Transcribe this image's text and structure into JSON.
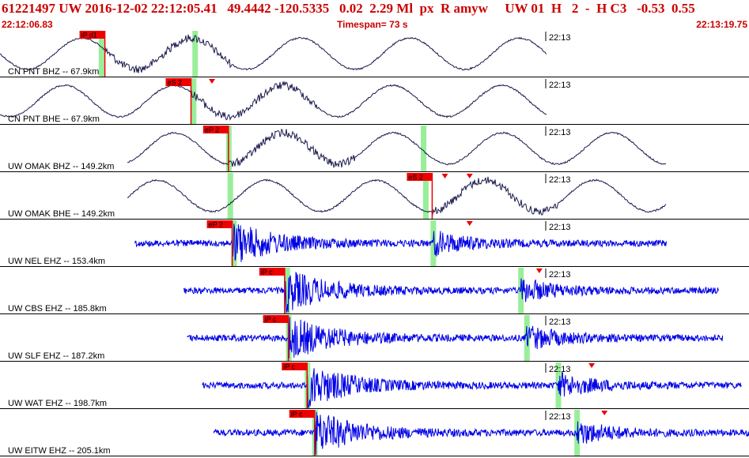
{
  "header": {
    "line": "61221497 UW 2016-12-02 22:12:05.41   49.4442 -120.5335   0.02  2.29 Ml  px  R amyw     UW 01  H   2  -  H C3   -0.53  0.55",
    "start_time": "22:12:06.83",
    "timespan": "Timespan=  73 s",
    "end_time": "22:13:19.75"
  },
  "colors": {
    "header_text": "#cc0000",
    "broadband_trace": "#1a1a4d",
    "short_period_trace": "#0000e6",
    "pick_box": "#ee0000",
    "pick_window": "#99ee99",
    "axis": "#000000"
  },
  "time_marker": "22:13",
  "traces": [
    {
      "label": "CN PNT BHZ -- 67.9km",
      "kind": "bb",
      "start": 0.0,
      "end": 0.73,
      "picks": [
        {
          "label": "iP d1",
          "t": 0.14
        }
      ],
      "windows": [
        0.135,
        0.26
      ],
      "arrivals": []
    },
    {
      "label": "CN PNT BHE -- 67.9km",
      "kind": "bb",
      "start": 0.0,
      "end": 0.73,
      "picks": [
        {
          "label": "eS 2",
          "t": 0.255
        }
      ],
      "windows": [
        0.258
      ],
      "arrivals": [
        0.283
      ]
    },
    {
      "label": "UW OMAK BHZ -- 149.2km",
      "kind": "bb",
      "start": 0.17,
      "end": 0.89,
      "picks": [
        {
          "label": "eP 2",
          "t": 0.305
        }
      ],
      "windows": [
        0.305,
        0.565
      ],
      "arrivals": []
    },
    {
      "label": "UW OMAK BHE -- 149.2km",
      "kind": "bb",
      "start": 0.17,
      "end": 0.89,
      "picks": [
        {
          "label": "eS 2",
          "t": 0.577
        }
      ],
      "windows": [
        0.307,
        0.568
      ],
      "arrivals": [
        0.594,
        0.627
      ]
    },
    {
      "label": "UW NEL EHZ -- 153.4km",
      "kind": "sp",
      "start": 0.18,
      "end": 0.89,
      "picks": [
        {
          "label": "eP 2",
          "t": 0.31
        }
      ],
      "windows": [
        0.312,
        0.578
      ],
      "arrivals": [
        0.627
      ]
    },
    {
      "label": "UW CBS EHZ -- 185.8km",
      "kind": "sp",
      "start": 0.245,
      "end": 0.96,
      "picks": [
        {
          "label": "iP c",
          "t": 0.38
        }
      ],
      "windows": [
        0.383,
        0.695
      ],
      "arrivals": [
        0.72
      ]
    },
    {
      "label": "UW SLF EHZ -- 187.2km",
      "kind": "sp",
      "start": 0.25,
      "end": 0.965,
      "picks": [
        {
          "label": "iP c",
          "t": 0.385
        }
      ],
      "windows": [
        0.385,
        0.703
      ],
      "arrivals": []
    },
    {
      "label": "UW WAT EHZ -- 198.7km",
      "kind": "sp",
      "start": 0.27,
      "end": 0.99,
      "picks": [
        {
          "label": "iP c",
          "t": 0.41
        }
      ],
      "windows": [
        0.41,
        0.745
      ],
      "arrivals": [
        0.79
      ]
    },
    {
      "label": "UW EITW EHZ -- 205.1km",
      "kind": "sp",
      "start": 0.285,
      "end": 1.0,
      "picks": [
        {
          "label": "iP c",
          "t": 0.42
        }
      ],
      "windows": [
        0.42,
        0.77
      ],
      "arrivals": [
        0.807
      ]
    }
  ]
}
